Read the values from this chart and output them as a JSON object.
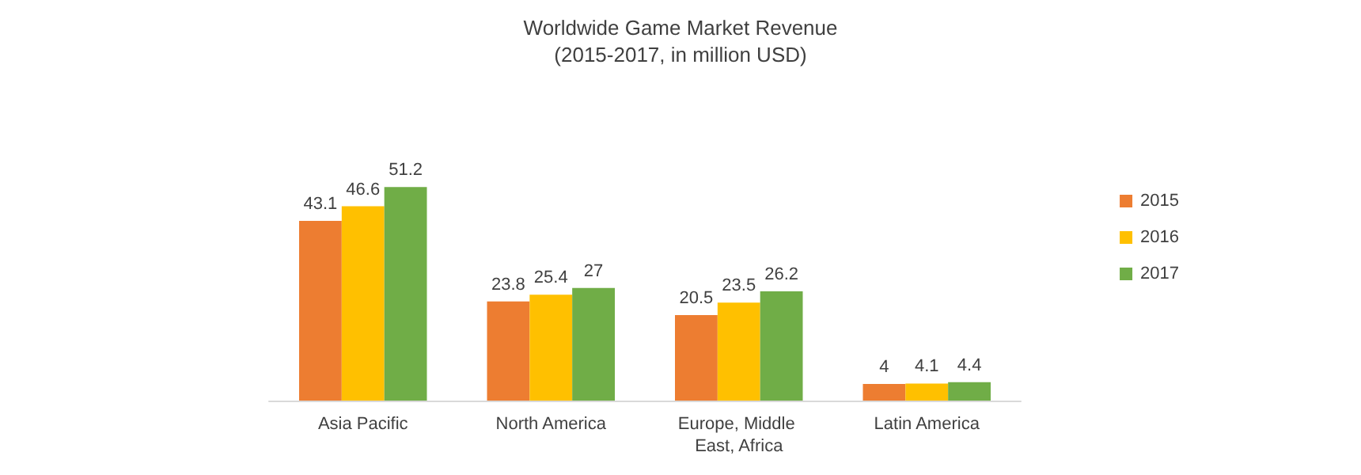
{
  "chart_data": {
    "type": "bar",
    "title": "Worldwide Game Market Revenue",
    "subtitle": "(2015-2017, in million USD)",
    "categories": [
      "Asia Pacific",
      "North America",
      "Europe, Middle East, Africa",
      "Latin America"
    ],
    "series": [
      {
        "name": "2015",
        "color": "#ed7d31",
        "values": [
          43.1,
          23.8,
          20.5,
          4
        ]
      },
      {
        "name": "2016",
        "color": "#ffc000",
        "values": [
          46.6,
          25.4,
          23.5,
          4.1
        ]
      },
      {
        "name": "2017",
        "color": "#70ad47",
        "values": [
          51.2,
          27,
          26.2,
          4.4
        ]
      }
    ],
    "data_labels": true,
    "legend": "right"
  }
}
